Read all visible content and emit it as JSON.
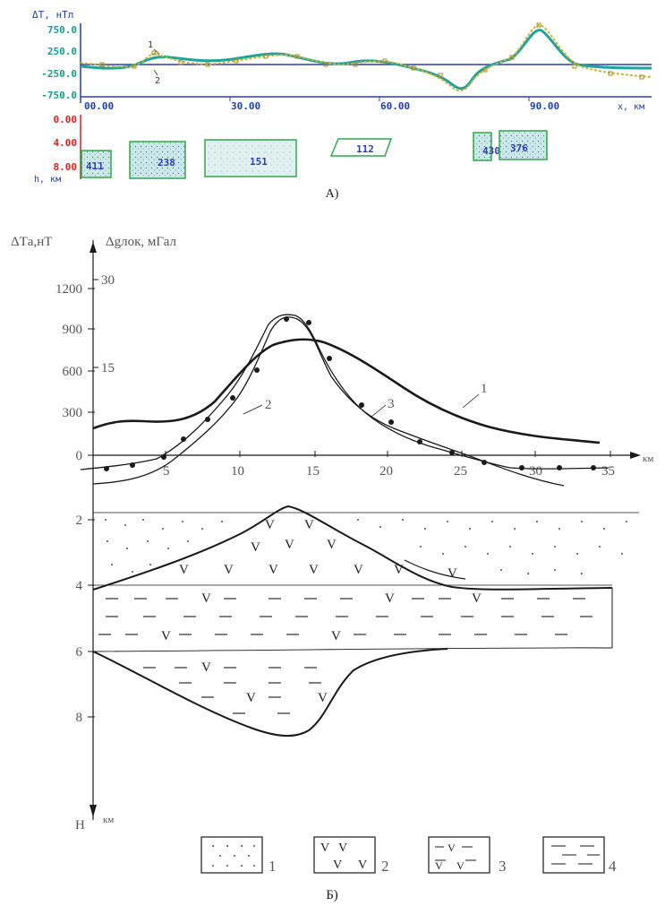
{
  "colors": {
    "tick_blue": "#1e3fa8",
    "tick_red": "#d82020",
    "tick_teal": "#189a8e",
    "line_blue": "#2a3fb0",
    "curve_yellow": "#c9b43a",
    "curve_teal": "#1fa39a",
    "body_green": "#2fa84a",
    "body_fill": "#b6dde4",
    "ink": "#1a1a1a"
  },
  "panel_a": {
    "ylabel": "ΔT, нТл",
    "y_ticks": [
      "750.0",
      "250.0",
      "-250.0",
      "-750.0"
    ],
    "x_ticks": [
      "00.00",
      "30.00",
      "60.00",
      "90.00"
    ],
    "xlabel": "x, км",
    "curve_labels": [
      "1",
      "2"
    ],
    "depth_ticks": [
      "0.00",
      "4.00",
      "8.00"
    ],
    "depth_label": "h, км",
    "bodies": [
      {
        "label": "411"
      },
      {
        "label": "238"
      },
      {
        "label": "151"
      },
      {
        "label": "112"
      },
      {
        "label": "430"
      },
      {
        "label": "376"
      }
    ],
    "caption": "А)"
  },
  "panel_b": {
    "y_title_left": "ΔTа,нТ",
    "y_title_right": "Δgлок, мГал",
    "y_ticks_left": [
      "1200",
      "900",
      "600",
      "300",
      "0"
    ],
    "y_ticks_right": [
      "30",
      "15"
    ],
    "x_ticks": [
      "5",
      "10",
      "15",
      "20",
      "25",
      "30",
      "35"
    ],
    "xlabel": "км",
    "curve_labels": [
      "1",
      "2",
      "3"
    ],
    "depth_ticks": [
      "2",
      "4",
      "6",
      "8"
    ],
    "depth_label": "Н",
    "depth_unit": "км",
    "legend": [
      {
        "label": "1",
        "pattern": "dots"
      },
      {
        "label": "2",
        "pattern": "v-marks"
      },
      {
        "label": "3",
        "pattern": "v-and-dashes"
      },
      {
        "label": "4",
        "pattern": "dashes"
      }
    ],
    "caption": "Б)"
  }
}
